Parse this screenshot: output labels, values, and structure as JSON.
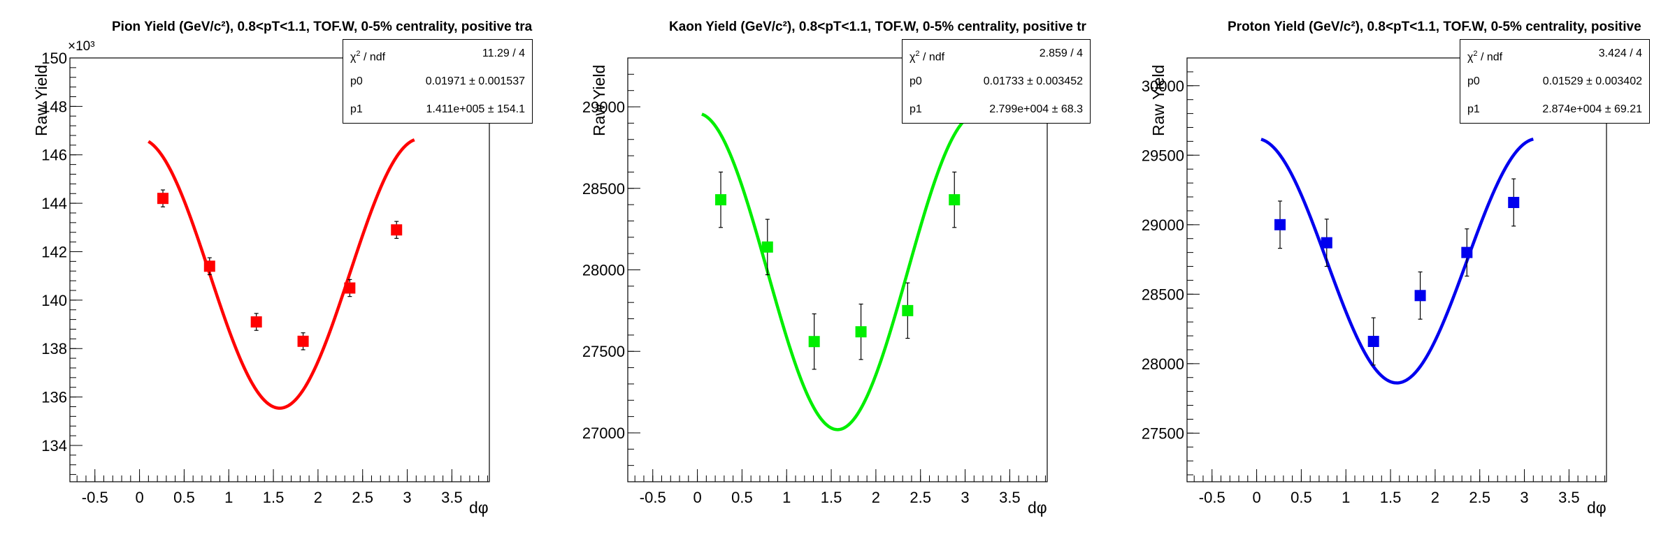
{
  "chart_data": [
    {
      "type": "scatter",
      "title": "Pion Yield (GeV/c²), 0.8<pT<1.1, TOF.W, 0-5% centrality, positive tra",
      "xlabel": "dφ",
      "ylabel": "Raw Yield",
      "y_exponent_label": "×10³",
      "xlim": [
        -0.78,
        3.92
      ],
      "ylim": [
        132.5,
        150
      ],
      "x_ticks": [
        -0.5,
        0,
        0.5,
        1,
        1.5,
        2,
        2.5,
        3,
        3.5
      ],
      "x_tick_labels": [
        "-0.5",
        "0",
        "0.5",
        "1",
        "1.5",
        "2",
        "2.5",
        "3",
        "3.5"
      ],
      "y_ticks": [
        134,
        136,
        138,
        140,
        142,
        144,
        146,
        148,
        150
      ],
      "y_tick_labels": [
        "134",
        "136",
        "138",
        "140",
        "142",
        "144",
        "146",
        "148",
        "150"
      ],
      "y_minor_step": 0.4,
      "color": "#ff0000",
      "fit": {
        "function": "p1*(1+2*p0*cos(2*x))",
        "x_range": [
          0.1,
          3.08
        ],
        "p0": 0.01971,
        "p1": 141.1
      },
      "points": [
        {
          "x": 0.262,
          "y": 144.2,
          "err": 0.35
        },
        {
          "x": 0.785,
          "y": 141.4,
          "err": 0.35
        },
        {
          "x": 1.309,
          "y": 139.1,
          "err": 0.35
        },
        {
          "x": 1.833,
          "y": 138.3,
          "err": 0.35
        },
        {
          "x": 2.356,
          "y": 140.5,
          "err": 0.35
        },
        {
          "x": 2.88,
          "y": 142.9,
          "err": 0.35
        }
      ],
      "stats": {
        "chi2_label": "/ ndf",
        "chi2_value": "11.29 / 4",
        "p0_label": "p0",
        "p0_value": "0.01971 ± 0.001537",
        "p1_label": "p1",
        "p1_value": "1.411e+005 ± 154.1"
      }
    },
    {
      "type": "scatter",
      "title": "Kaon Yield (GeV/c²), 0.8<pT<1.1, TOF.W, 0-5% centrality, positive tr",
      "xlabel": "dφ",
      "ylabel": "Raw Yield",
      "xlim": [
        -0.78,
        3.92
      ],
      "ylim": [
        26700,
        29300
      ],
      "x_ticks": [
        -0.5,
        0,
        0.5,
        1,
        1.5,
        2,
        2.5,
        3,
        3.5
      ],
      "x_tick_labels": [
        "-0.5",
        "0",
        "0.5",
        "1",
        "1.5",
        "2",
        "2.5",
        "3",
        "3.5"
      ],
      "y_ticks": [
        27000,
        27500,
        28000,
        28500,
        29000
      ],
      "y_tick_labels": [
        "27000",
        "27500",
        "28000",
        "28500",
        "29000"
      ],
      "y_minor_step": 100,
      "color": "#00ee00",
      "fit": {
        "function": "p1*(1+2*p0*cos(2*x))",
        "x_range": [
          0.05,
          3.1
        ],
        "p0": 0.01733,
        "p1": 27990
      },
      "points": [
        {
          "x": 0.262,
          "y": 28430,
          "err": 170
        },
        {
          "x": 0.785,
          "y": 28140,
          "err": 170
        },
        {
          "x": 1.309,
          "y": 27560,
          "err": 170
        },
        {
          "x": 1.833,
          "y": 27620,
          "err": 170
        },
        {
          "x": 2.356,
          "y": 27750,
          "err": 170
        },
        {
          "x": 2.88,
          "y": 28430,
          "err": 170
        }
      ],
      "stats": {
        "chi2_label": "/ ndf",
        "chi2_value": "2.859 / 4",
        "p0_label": "p0",
        "p0_value": "0.01733 ± 0.003452",
        "p1_label": "p1",
        "p1_value": "2.799e+004 ±  68.3"
      }
    },
    {
      "type": "scatter",
      "title": "Proton Yield (GeV/c²), 0.8<pT<1.1, TOF.W, 0-5% centrality, positive",
      "xlabel": "dφ",
      "ylabel": "Raw Yield",
      "xlim": [
        -0.78,
        3.92
      ],
      "ylim": [
        27150,
        30200
      ],
      "x_ticks": [
        -0.5,
        0,
        0.5,
        1,
        1.5,
        2,
        2.5,
        3,
        3.5
      ],
      "x_tick_labels": [
        "-0.5",
        "0",
        "0.5",
        "1",
        "1.5",
        "2",
        "2.5",
        "3",
        "3.5"
      ],
      "y_ticks": [
        27500,
        28000,
        28500,
        29000,
        29500,
        30000
      ],
      "y_tick_labels": [
        "27500",
        "28000",
        "28500",
        "29000",
        "29500",
        "30000"
      ],
      "y_minor_step": 100,
      "color": "#0000ee",
      "fit": {
        "function": "p1*(1+2*p0*cos(2*x))",
        "x_range": [
          0.05,
          3.1
        ],
        "p0": 0.01529,
        "p1": 28740
      },
      "points": [
        {
          "x": 0.262,
          "y": 29000,
          "err": 170
        },
        {
          "x": 0.785,
          "y": 28870,
          "err": 170
        },
        {
          "x": 1.309,
          "y": 28160,
          "err": 170
        },
        {
          "x": 1.833,
          "y": 28490,
          "err": 170
        },
        {
          "x": 2.356,
          "y": 28800,
          "err": 170
        },
        {
          "x": 2.88,
          "y": 29160,
          "err": 170
        }
      ],
      "stats": {
        "chi2_label": "/ ndf",
        "chi2_value": "3.424 / 4",
        "p0_label": "p0",
        "p0_value": "0.01529 ± 0.003402",
        "p1_label": "p1",
        "p1_value": "2.874e+004 ± 69.21"
      }
    }
  ]
}
